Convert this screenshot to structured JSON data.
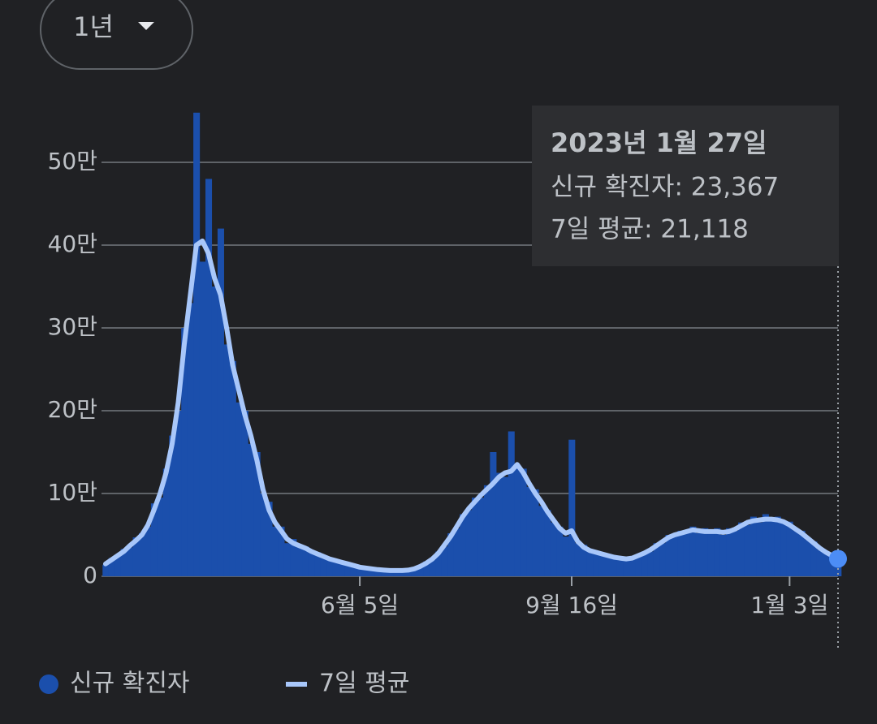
{
  "range_selector": {
    "label": "1년"
  },
  "chart_data": {
    "type": "bar",
    "categories": [
      null,
      null,
      null,
      null,
      null,
      null,
      null,
      null,
      null,
      null,
      null,
      null,
      null,
      null,
      null,
      null,
      null,
      null,
      null,
      null,
      null,
      null,
      null,
      null,
      null,
      null,
      null,
      null,
      null,
      null,
      null,
      null,
      null,
      null,
      null,
      null,
      null,
      null,
      null,
      null,
      null,
      null,
      "6월 5일",
      null,
      null,
      null,
      null,
      null,
      null,
      null,
      null,
      null,
      null,
      null,
      null,
      null,
      null,
      null,
      null,
      null,
      null,
      null,
      null,
      null,
      null,
      null,
      null,
      null,
      null,
      null,
      null,
      null,
      null,
      null,
      null,
      null,
      null,
      "9월 16일",
      null,
      null,
      null,
      null,
      null,
      null,
      null,
      null,
      null,
      null,
      null,
      null,
      null,
      null,
      null,
      null,
      null,
      null,
      null,
      null,
      null,
      null,
      null,
      null,
      null,
      null,
      null,
      null,
      null,
      null,
      null,
      null,
      null,
      null,
      null,
      "1월 3일",
      null,
      null,
      null,
      null,
      null,
      null,
      null,
      null
    ],
    "series": [
      {
        "name": "신규 확진자",
        "type": "bar",
        "color": "#1b4fac",
        "values": [
          14000,
          22000,
          24000,
          33000,
          35000,
          47000,
          52000,
          60000,
          88000,
          95000,
          130000,
          170000,
          200000,
          300000,
          330000,
          560000,
          380000,
          480000,
          350000,
          420000,
          280000,
          260000,
          210000,
          200000,
          160000,
          150000,
          100000,
          90000,
          60000,
          60000,
          40000,
          45000,
          35000,
          36000,
          28000,
          29000,
          22000,
          22000,
          18000,
          18000,
          14000,
          14000,
          10000,
          11000,
          8000,
          9000,
          7000,
          7000,
          6000,
          8000,
          7000,
          10000,
          11000,
          18000,
          20000,
          30000,
          36000,
          52000,
          58000,
          75000,
          80000,
          95000,
          95000,
          110000,
          150000,
          125000,
          120000,
          175000,
          130000,
          130000,
          108000,
          105000,
          85000,
          80000,
          65000,
          60000,
          48000,
          165000,
          40000,
          38000,
          30000,
          30000,
          26000,
          27000,
          22000,
          24000,
          20000,
          23000,
          24000,
          30000,
          30000,
          40000,
          40000,
          50000,
          48000,
          55000,
          52000,
          60000,
          52000,
          58000,
          52000,
          58000,
          50000,
          58000,
          55000,
          65000,
          62000,
          72000,
          65000,
          75000,
          68000,
          72000,
          64000,
          66000,
          55000,
          55000,
          44000,
          42000,
          32000,
          30000,
          24000,
          23367
        ]
      },
      {
        "name": "7일 평균",
        "type": "line",
        "color": "#a8c7fa",
        "values": [
          15000,
          20000,
          25000,
          30000,
          37000,
          43000,
          50000,
          62000,
          80000,
          100000,
          125000,
          160000,
          210000,
          280000,
          340000,
          400000,
          405000,
          390000,
          360000,
          340000,
          300000,
          255000,
          225000,
          195000,
          170000,
          140000,
          105000,
          80000,
          65000,
          55000,
          45000,
          40000,
          37000,
          34000,
          30000,
          27000,
          24000,
          21000,
          19000,
          17000,
          15000,
          13000,
          11000,
          10000,
          9000,
          8000,
          7500,
          7000,
          7000,
          7000,
          7500,
          9000,
          12000,
          16000,
          21000,
          28000,
          38000,
          48000,
          60000,
          72000,
          82000,
          90000,
          98000,
          105000,
          112000,
          120000,
          125000,
          127000,
          135000,
          125000,
          112000,
          100000,
          90000,
          78000,
          68000,
          58000,
          52000,
          55000,
          42000,
          35000,
          31000,
          29000,
          27000,
          25000,
          23000,
          22000,
          21000,
          22000,
          25000,
          28000,
          32000,
          37000,
          42000,
          47000,
          50000,
          52000,
          54000,
          56000,
          55000,
          54000,
          54000,
          54000,
          53000,
          54000,
          57000,
          61000,
          65000,
          67000,
          68000,
          69000,
          69000,
          68000,
          66000,
          62000,
          57000,
          52000,
          46000,
          40000,
          34000,
          29000,
          25000,
          21118
        ]
      }
    ],
    "ylim": [
      0,
      570000
    ],
    "yticks": [
      0,
      {
        "value": 100000,
        "label": "10만"
      },
      {
        "value": 200000,
        "label": "20만"
      },
      {
        "value": 300000,
        "label": "30만"
      },
      {
        "value": 400000,
        "label": "40만"
      },
      {
        "value": 500000,
        "label": "50만"
      }
    ],
    "grid": true,
    "tooltip": {
      "title": "2023년 1월 27일",
      "lines": [
        "신규 확진자: 23,367",
        "7일 평균: 21,118"
      ]
    }
  }
}
